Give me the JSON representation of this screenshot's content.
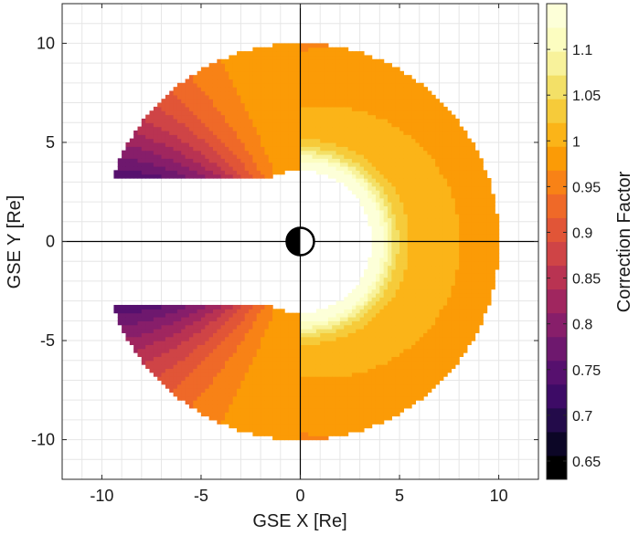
{
  "chart_data": {
    "type": "heatmap",
    "title": "",
    "xlabel": "GSE X [Re]",
    "ylabel": "GSE Y [Re]",
    "xlim": [
      -12,
      12
    ],
    "ylim": [
      -12,
      12
    ],
    "xticks": [
      -10,
      -5,
      0,
      5,
      10
    ],
    "yticks": [
      -10,
      -5,
      0,
      5,
      10
    ],
    "grid": true,
    "colorbar": {
      "label": "Correction Factor",
      "range": [
        0.63,
        1.15
      ],
      "ticks": [
        0.65,
        0.7,
        0.75,
        0.8,
        0.85,
        0.9,
        0.95,
        1,
        1.05,
        1.1
      ],
      "bin_step": 0.025,
      "colors": [
        "#000000",
        "#0c0626",
        "#230b4a",
        "#3d0b66",
        "#56106e",
        "#6e186e",
        "#871e6a",
        "#a0265f",
        "#b93352",
        "#cf4446",
        "#e15537",
        "#ef6928",
        "#f88216",
        "#fb9b06",
        "#fbb418",
        "#f6cb3a",
        "#f3e067",
        "#f8f29b",
        "#fcfdc0",
        "#fdffd8"
      ]
    },
    "domain": {
      "inner_radius": 3.6,
      "outer_radius": 10,
      "excluded_sector": "x < 0 and |y| < 3.2",
      "field_extrema": {
        "day_inner_max": 1.14,
        "dayside_outer": 0.99,
        "night_flank_min": 0.65
      }
    },
    "earth_marker": {
      "x": 0,
      "y": 0
    }
  }
}
